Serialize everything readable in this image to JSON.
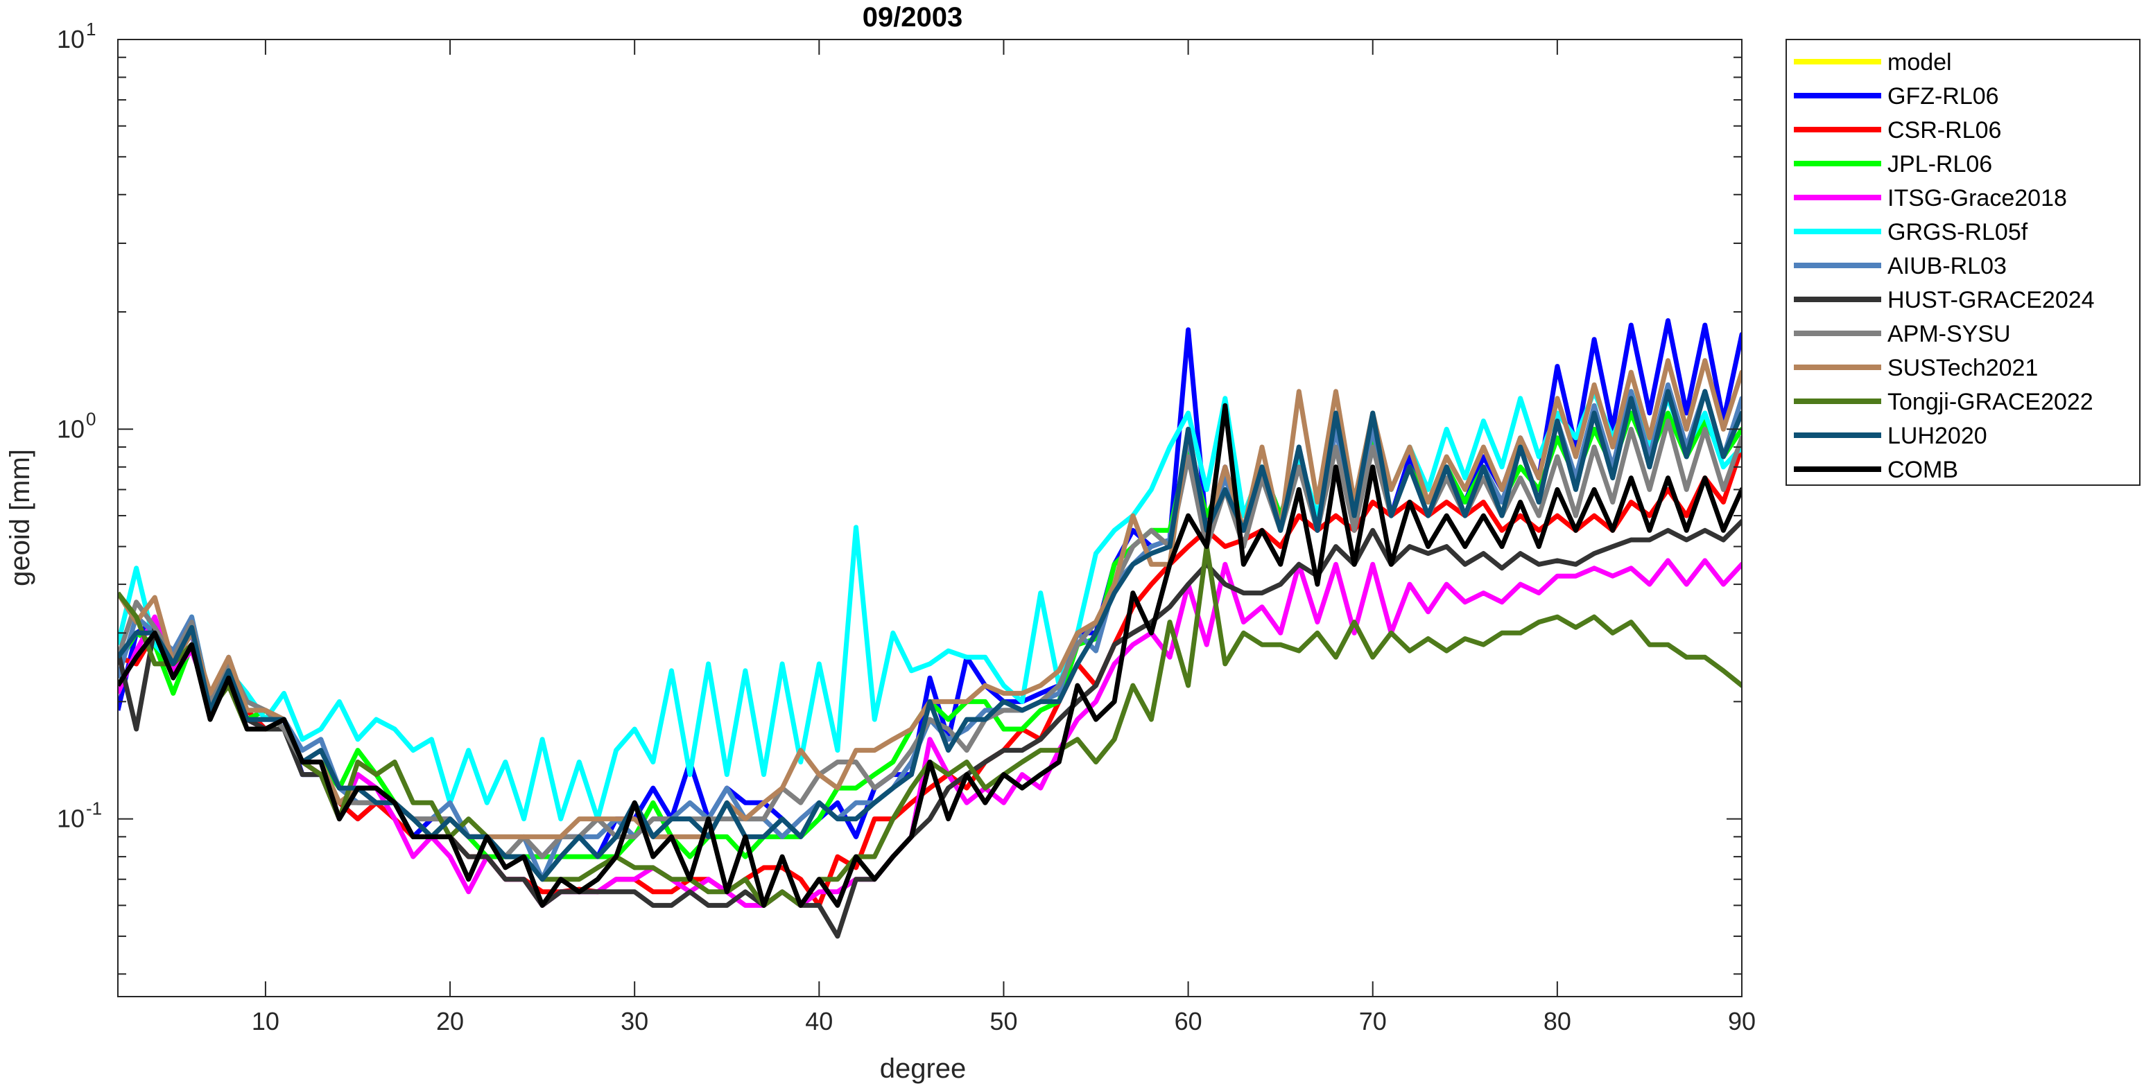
{
  "chart_data": {
    "type": "line",
    "title": "09/2003",
    "xlabel": "degree",
    "ylabel": "geoid [mm]",
    "xlim": [
      2,
      90
    ],
    "ylim": [
      0.035,
      10
    ],
    "yscale": "log",
    "xticks": [
      10,
      20,
      30,
      40,
      50,
      60,
      70,
      80,
      90
    ],
    "yticks": [
      {
        "value": 0.1,
        "base": "10",
        "exp": "-1"
      },
      {
        "value": 1,
        "base": "10",
        "exp": "0"
      },
      {
        "value": 10,
        "base": "10",
        "exp": "1"
      }
    ],
    "grid": false,
    "legend_position": "outside-top-right",
    "x_start": 2,
    "series": [
      {
        "name": "model",
        "color": "#ffff00",
        "values": []
      },
      {
        "name": "GFZ-RL06",
        "color": "#0000ff",
        "values": [
          0.19,
          0.3,
          0.32,
          0.25,
          0.3,
          0.19,
          0.25,
          0.18,
          0.18,
          0.18,
          0.13,
          0.13,
          0.11,
          0.1,
          0.11,
          0.11,
          0.09,
          0.1,
          0.1,
          0.09,
          0.09,
          0.08,
          0.08,
          0.08,
          0.09,
          0.09,
          0.08,
          0.1,
          0.1,
          0.12,
          0.1,
          0.14,
          0.1,
          0.12,
          0.11,
          0.11,
          0.1,
          0.09,
          0.1,
          0.11,
          0.09,
          0.12,
          0.13,
          0.13,
          0.23,
          0.16,
          0.26,
          0.22,
          0.2,
          0.2,
          0.21,
          0.22,
          0.3,
          0.3,
          0.45,
          0.55,
          0.5,
          0.52,
          1.8,
          0.55,
          0.8,
          0.55,
          0.8,
          0.6,
          0.85,
          0.55,
          1.0,
          0.6,
          1.05,
          0.6,
          0.85,
          0.65,
          0.8,
          0.65,
          0.85,
          0.7,
          0.95,
          0.75,
          1.45,
          0.9,
          1.7,
          1.0,
          1.85,
          1.1,
          1.9,
          1.1,
          1.85,
          1.05,
          1.75,
          1.2
        ]
      },
      {
        "name": "CSR-RL06",
        "color": "#ff0000",
        "values": [
          0.26,
          0.25,
          0.3,
          0.24,
          0.28,
          0.2,
          0.22,
          0.19,
          0.17,
          0.18,
          0.14,
          0.13,
          0.11,
          0.1,
          0.11,
          0.1,
          0.09,
          0.09,
          0.09,
          0.08,
          0.08,
          0.07,
          0.07,
          0.065,
          0.065,
          0.066,
          0.065,
          0.07,
          0.07,
          0.065,
          0.065,
          0.07,
          0.07,
          0.065,
          0.07,
          0.075,
          0.075,
          0.07,
          0.06,
          0.08,
          0.075,
          0.1,
          0.1,
          0.11,
          0.12,
          0.13,
          0.12,
          0.14,
          0.15,
          0.17,
          0.16,
          0.2,
          0.25,
          0.22,
          0.28,
          0.35,
          0.4,
          0.45,
          0.5,
          0.55,
          0.5,
          0.52,
          0.55,
          0.5,
          0.6,
          0.55,
          0.6,
          0.55,
          0.65,
          0.6,
          0.65,
          0.6,
          0.65,
          0.6,
          0.65,
          0.55,
          0.6,
          0.55,
          0.6,
          0.55,
          0.6,
          0.55,
          0.65,
          0.6,
          0.7,
          0.6,
          0.75,
          0.65,
          0.9,
          0.8
        ]
      },
      {
        "name": "JPL-RL06",
        "color": "#00ff00",
        "values": [
          0.25,
          0.3,
          0.28,
          0.21,
          0.28,
          0.2,
          0.24,
          0.18,
          0.19,
          0.17,
          0.14,
          0.14,
          0.12,
          0.15,
          0.13,
          0.11,
          0.1,
          0.09,
          0.1,
          0.09,
          0.08,
          0.08,
          0.08,
          0.08,
          0.08,
          0.08,
          0.08,
          0.08,
          0.09,
          0.11,
          0.09,
          0.08,
          0.09,
          0.09,
          0.08,
          0.09,
          0.09,
          0.09,
          0.1,
          0.12,
          0.12,
          0.13,
          0.14,
          0.17,
          0.2,
          0.18,
          0.2,
          0.2,
          0.17,
          0.17,
          0.19,
          0.2,
          0.28,
          0.29,
          0.45,
          0.5,
          0.55,
          0.55,
          0.9,
          0.6,
          0.75,
          0.6,
          0.8,
          0.6,
          0.85,
          0.6,
          0.9,
          0.6,
          0.95,
          0.6,
          0.8,
          0.65,
          0.8,
          0.65,
          0.8,
          0.65,
          0.8,
          0.7,
          0.95,
          0.75,
          1.0,
          0.8,
          1.1,
          0.85,
          1.1,
          0.85,
          1.05,
          0.85,
          1.0,
          0.95
        ]
      },
      {
        "name": "ITSG-Grace2018",
        "color": "#ff00ff",
        "values": [
          0.21,
          0.27,
          0.33,
          0.24,
          0.27,
          0.2,
          0.22,
          0.18,
          0.17,
          0.17,
          0.14,
          0.13,
          0.1,
          0.13,
          0.12,
          0.1,
          0.08,
          0.09,
          0.08,
          0.065,
          0.08,
          0.07,
          0.07,
          0.06,
          0.065,
          0.065,
          0.065,
          0.07,
          0.07,
          0.075,
          0.07,
          0.065,
          0.07,
          0.065,
          0.06,
          0.06,
          0.065,
          0.06,
          0.065,
          0.065,
          0.07,
          0.07,
          0.08,
          0.09,
          0.16,
          0.13,
          0.11,
          0.12,
          0.11,
          0.13,
          0.12,
          0.15,
          0.18,
          0.2,
          0.25,
          0.28,
          0.3,
          0.26,
          0.4,
          0.28,
          0.45,
          0.32,
          0.35,
          0.3,
          0.45,
          0.32,
          0.45,
          0.3,
          0.45,
          0.3,
          0.4,
          0.34,
          0.4,
          0.36,
          0.38,
          0.36,
          0.4,
          0.38,
          0.42,
          0.42,
          0.44,
          0.42,
          0.44,
          0.4,
          0.46,
          0.4,
          0.46,
          0.4,
          0.45,
          0.38
        ]
      },
      {
        "name": "GRGS-RL05f",
        "color": "#00ffff",
        "values": [
          0.28,
          0.44,
          0.28,
          0.25,
          0.33,
          0.2,
          0.24,
          0.21,
          0.18,
          0.21,
          0.16,
          0.17,
          0.2,
          0.16,
          0.18,
          0.17,
          0.15,
          0.16,
          0.11,
          0.15,
          0.11,
          0.14,
          0.1,
          0.16,
          0.1,
          0.14,
          0.1,
          0.15,
          0.17,
          0.14,
          0.24,
          0.13,
          0.25,
          0.13,
          0.24,
          0.13,
          0.25,
          0.14,
          0.25,
          0.15,
          0.56,
          0.18,
          0.3,
          0.24,
          0.25,
          0.27,
          0.26,
          0.26,
          0.22,
          0.2,
          0.38,
          0.22,
          0.3,
          0.48,
          0.55,
          0.6,
          0.7,
          0.9,
          1.1,
          0.7,
          1.2,
          0.6,
          0.8,
          0.55,
          0.85,
          0.6,
          1.0,
          0.65,
          1.0,
          0.7,
          0.9,
          0.7,
          1.0,
          0.75,
          1.05,
          0.8,
          1.2,
          0.85,
          1.1,
          0.95,
          1.25,
          0.95,
          1.25,
          0.9,
          1.2,
          0.9,
          1.1,
          0.8,
          0.9,
          0.6
        ]
      },
      {
        "name": "AIUB-RL03",
        "color": "#4f81bd",
        "values": [
          0.23,
          0.33,
          0.3,
          0.27,
          0.33,
          0.2,
          0.26,
          0.19,
          0.19,
          0.18,
          0.15,
          0.16,
          0.12,
          0.11,
          0.11,
          0.11,
          0.1,
          0.1,
          0.11,
          0.09,
          0.09,
          0.08,
          0.09,
          0.07,
          0.09,
          0.09,
          0.09,
          0.1,
          0.09,
          0.1,
          0.1,
          0.11,
          0.1,
          0.12,
          0.1,
          0.1,
          0.09,
          0.1,
          0.11,
          0.1,
          0.11,
          0.11,
          0.12,
          0.14,
          0.18,
          0.16,
          0.17,
          0.19,
          0.19,
          0.19,
          0.2,
          0.21,
          0.3,
          0.27,
          0.4,
          0.45,
          0.5,
          0.52,
          0.95,
          0.55,
          0.75,
          0.55,
          0.8,
          0.55,
          0.9,
          0.55,
          1.0,
          0.6,
          1.0,
          0.6,
          0.8,
          0.6,
          0.8,
          0.6,
          0.8,
          0.65,
          0.9,
          0.65,
          1.05,
          0.75,
          1.15,
          0.8,
          1.25,
          0.85,
          1.3,
          0.9,
          1.25,
          0.85,
          1.2,
          0.95
        ]
      },
      {
        "name": "HUST-GRACE2024",
        "color": "#333333",
        "values": [
          0.27,
          0.17,
          0.31,
          0.25,
          0.28,
          0.2,
          0.22,
          0.18,
          0.17,
          0.17,
          0.13,
          0.13,
          0.1,
          0.12,
          0.12,
          0.11,
          0.09,
          0.09,
          0.09,
          0.08,
          0.08,
          0.07,
          0.07,
          0.06,
          0.065,
          0.065,
          0.065,
          0.065,
          0.065,
          0.06,
          0.06,
          0.065,
          0.06,
          0.06,
          0.065,
          0.06,
          0.065,
          0.06,
          0.06,
          0.05,
          0.07,
          0.07,
          0.08,
          0.09,
          0.1,
          0.12,
          0.13,
          0.14,
          0.15,
          0.15,
          0.16,
          0.18,
          0.2,
          0.22,
          0.28,
          0.3,
          0.32,
          0.35,
          0.4,
          0.45,
          0.4,
          0.38,
          0.38,
          0.4,
          0.45,
          0.42,
          0.5,
          0.45,
          0.55,
          0.45,
          0.5,
          0.48,
          0.5,
          0.45,
          0.48,
          0.44,
          0.48,
          0.45,
          0.46,
          0.45,
          0.48,
          0.5,
          0.52,
          0.52,
          0.55,
          0.52,
          0.55,
          0.52,
          0.58,
          0.6
        ]
      },
      {
        "name": "APM-SYSU",
        "color": "#808080",
        "values": [
          0.26,
          0.36,
          0.31,
          0.26,
          0.32,
          0.2,
          0.25,
          0.2,
          0.19,
          0.17,
          0.14,
          0.14,
          0.11,
          0.11,
          0.11,
          0.11,
          0.1,
          0.1,
          0.1,
          0.09,
          0.09,
          0.08,
          0.09,
          0.08,
          0.09,
          0.09,
          0.1,
          0.09,
          0.09,
          0.1,
          0.1,
          0.1,
          0.1,
          0.1,
          0.1,
          0.1,
          0.12,
          0.11,
          0.13,
          0.14,
          0.14,
          0.12,
          0.13,
          0.15,
          0.18,
          0.17,
          0.15,
          0.18,
          0.19,
          0.19,
          0.2,
          0.22,
          0.28,
          0.32,
          0.4,
          0.5,
          0.55,
          0.5,
          0.85,
          0.5,
          0.7,
          0.5,
          0.75,
          0.55,
          0.8,
          0.55,
          0.9,
          0.55,
          0.9,
          0.6,
          0.8,
          0.6,
          0.75,
          0.6,
          0.75,
          0.6,
          0.75,
          0.6,
          0.85,
          0.6,
          0.9,
          0.65,
          1.0,
          0.7,
          1.05,
          0.7,
          1.0,
          0.7,
          0.95,
          0.65
        ]
      },
      {
        "name": "SUSTech2021",
        "color": "#b5835a",
        "values": [
          0.38,
          0.32,
          0.37,
          0.25,
          0.3,
          0.21,
          0.26,
          0.19,
          0.19,
          0.18,
          0.14,
          0.14,
          0.11,
          0.12,
          0.11,
          0.11,
          0.1,
          0.09,
          0.1,
          0.09,
          0.09,
          0.09,
          0.09,
          0.09,
          0.09,
          0.1,
          0.1,
          0.1,
          0.1,
          0.09,
          0.09,
          0.09,
          0.09,
          0.11,
          0.1,
          0.11,
          0.12,
          0.15,
          0.13,
          0.12,
          0.15,
          0.15,
          0.16,
          0.17,
          0.2,
          0.2,
          0.2,
          0.22,
          0.21,
          0.21,
          0.22,
          0.24,
          0.3,
          0.32,
          0.4,
          0.6,
          0.45,
          0.45,
          1.0,
          0.55,
          0.8,
          0.55,
          0.9,
          0.55,
          1.25,
          0.65,
          1.25,
          0.65,
          1.1,
          0.7,
          0.9,
          0.65,
          0.85,
          0.7,
          0.9,
          0.7,
          0.95,
          0.75,
          1.2,
          0.85,
          1.3,
          0.9,
          1.4,
          0.95,
          1.5,
          1.0,
          1.5,
          1.0,
          1.4,
          1.05
        ]
      },
      {
        "name": "Tongji-GRACE2022",
        "color": "#4e7a1a",
        "values": [
          0.38,
          0.33,
          0.25,
          0.25,
          0.28,
          0.19,
          0.22,
          0.17,
          0.17,
          0.18,
          0.14,
          0.13,
          0.1,
          0.14,
          0.13,
          0.14,
          0.11,
          0.11,
          0.09,
          0.1,
          0.09,
          0.08,
          0.08,
          0.07,
          0.07,
          0.07,
          0.075,
          0.08,
          0.075,
          0.075,
          0.07,
          0.07,
          0.065,
          0.065,
          0.07,
          0.06,
          0.065,
          0.06,
          0.07,
          0.07,
          0.08,
          0.08,
          0.1,
          0.12,
          0.14,
          0.13,
          0.14,
          0.12,
          0.13,
          0.14,
          0.15,
          0.15,
          0.16,
          0.14,
          0.16,
          0.22,
          0.18,
          0.32,
          0.22,
          0.5,
          0.25,
          0.3,
          0.28,
          0.28,
          0.27,
          0.3,
          0.26,
          0.32,
          0.26,
          0.3,
          0.27,
          0.29,
          0.27,
          0.29,
          0.28,
          0.3,
          0.3,
          0.32,
          0.33,
          0.31,
          0.33,
          0.3,
          0.32,
          0.28,
          0.28,
          0.26,
          0.26,
          0.24,
          0.22,
          0.21
        ]
      },
      {
        "name": "LUH2020",
        "color": "#0d5175",
        "values": [
          0.26,
          0.3,
          0.3,
          0.25,
          0.31,
          0.19,
          0.24,
          0.18,
          0.18,
          0.18,
          0.14,
          0.15,
          0.12,
          0.12,
          0.11,
          0.11,
          0.1,
          0.09,
          0.1,
          0.09,
          0.09,
          0.08,
          0.08,
          0.07,
          0.08,
          0.09,
          0.08,
          0.09,
          0.11,
          0.09,
          0.1,
          0.1,
          0.09,
          0.11,
          0.09,
          0.09,
          0.1,
          0.09,
          0.11,
          0.1,
          0.1,
          0.11,
          0.12,
          0.13,
          0.2,
          0.15,
          0.18,
          0.18,
          0.2,
          0.19,
          0.2,
          0.2,
          0.25,
          0.3,
          0.38,
          0.45,
          0.48,
          0.5,
          1.0,
          0.55,
          0.7,
          0.55,
          0.8,
          0.55,
          0.9,
          0.55,
          1.1,
          0.6,
          1.1,
          0.6,
          0.8,
          0.6,
          0.8,
          0.6,
          0.8,
          0.6,
          0.9,
          0.65,
          1.05,
          0.7,
          1.1,
          0.75,
          1.2,
          0.8,
          1.25,
          0.85,
          1.25,
          0.85,
          1.1,
          1.0
        ]
      },
      {
        "name": "COMB",
        "color": "#000000",
        "values": [
          0.22,
          0.26,
          0.3,
          0.23,
          0.28,
          0.18,
          0.23,
          0.17,
          0.17,
          0.18,
          0.14,
          0.14,
          0.1,
          0.12,
          0.12,
          0.11,
          0.09,
          0.09,
          0.09,
          0.07,
          0.09,
          0.075,
          0.08,
          0.06,
          0.07,
          0.065,
          0.07,
          0.08,
          0.11,
          0.08,
          0.09,
          0.07,
          0.1,
          0.065,
          0.09,
          0.06,
          0.08,
          0.06,
          0.07,
          0.06,
          0.08,
          0.07,
          0.08,
          0.09,
          0.14,
          0.1,
          0.13,
          0.11,
          0.13,
          0.12,
          0.13,
          0.14,
          0.22,
          0.18,
          0.2,
          0.38,
          0.3,
          0.45,
          0.6,
          0.5,
          1.15,
          0.45,
          0.55,
          0.45,
          0.7,
          0.4,
          0.8,
          0.45,
          0.8,
          0.45,
          0.65,
          0.5,
          0.6,
          0.5,
          0.6,
          0.5,
          0.65,
          0.5,
          0.7,
          0.55,
          0.7,
          0.55,
          0.75,
          0.55,
          0.75,
          0.55,
          0.75,
          0.55,
          0.7,
          0.5
        ]
      }
    ]
  }
}
